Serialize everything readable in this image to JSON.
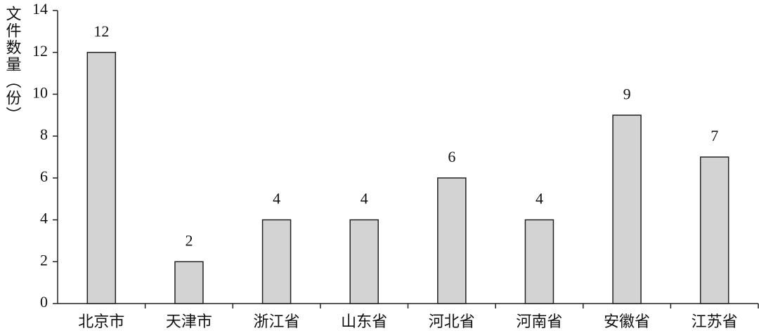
{
  "chart_data": {
    "type": "bar",
    "y_label": "文件数量（份）",
    "categories": [
      "北京市",
      "天津市",
      "浙江省",
      "山东省",
      "河北省",
      "河南省",
      "安徽省",
      "江苏省"
    ],
    "values": [
      12,
      2,
      4,
      4,
      6,
      4,
      9,
      7
    ],
    "color": "#d3d3d3",
    "ylim": [
      0,
      14
    ],
    "yticks": [
      0,
      2,
      4,
      6,
      8,
      10,
      12,
      14
    ],
    "grid": false
  }
}
